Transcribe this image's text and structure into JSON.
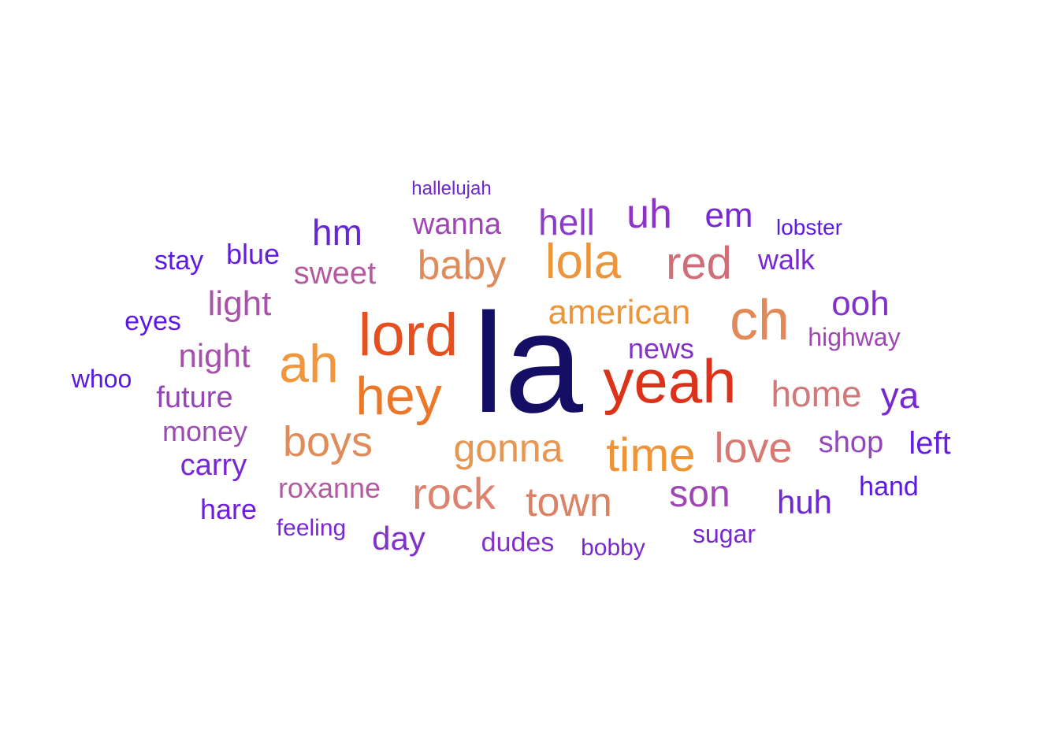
{
  "words": [
    {
      "text": "la",
      "color": "#140f64",
      "weight": 100
    },
    {
      "text": "yeah",
      "color": "#dc3219",
      "weight": 62
    },
    {
      "text": "lord",
      "color": "#e6501e",
      "weight": 60
    },
    {
      "text": "hey",
      "color": "#eb7828",
      "weight": 56
    },
    {
      "text": "ah",
      "color": "#f0963c",
      "weight": 56
    },
    {
      "text": "ch",
      "color": "#e08a5a",
      "weight": 55
    },
    {
      "text": "lola",
      "color": "#eb963c",
      "weight": 46
    },
    {
      "text": "time",
      "color": "#ee9437",
      "weight": 46
    },
    {
      "text": "red",
      "color": "#cd6e78",
      "weight": 44
    },
    {
      "text": "rock",
      "color": "#dc826e",
      "weight": 42
    },
    {
      "text": "boys",
      "color": "#e08c5a",
      "weight": 41
    },
    {
      "text": "love",
      "color": "#d77873",
      "weight": 41
    },
    {
      "text": "baby",
      "color": "#e08c5a",
      "weight": 40
    },
    {
      "text": "town",
      "color": "#dc8264",
      "weight": 40
    },
    {
      "text": "uh",
      "color": "#8c32c8",
      "weight": 40
    },
    {
      "text": "gonna",
      "color": "#e69650",
      "weight": 40
    },
    {
      "text": "son",
      "color": "#a046b4",
      "weight": 38
    },
    {
      "text": "home",
      "color": "#d27878",
      "weight": 37
    },
    {
      "text": "american",
      "color": "#eb963c",
      "weight": 35
    },
    {
      "text": "hell",
      "color": "#8c3cc8",
      "weight": 35
    },
    {
      "text": "ya",
      "color": "#7828d2",
      "weight": 35
    },
    {
      "text": "hm",
      "color": "#6428d2",
      "weight": 35
    },
    {
      "text": "ooh",
      "color": "#8232c8",
      "weight": 34
    },
    {
      "text": "light",
      "color": "#aa50aa",
      "weight": 34
    },
    {
      "text": "em",
      "color": "#7828d2",
      "weight": 33
    },
    {
      "text": "night",
      "color": "#a550aa",
      "weight": 33
    },
    {
      "text": "huh",
      "color": "#6e28d2",
      "weight": 32
    },
    {
      "text": "day",
      "color": "#8232c8",
      "weight": 32
    },
    {
      "text": "sweet",
      "color": "#b45aa0",
      "weight": 31
    },
    {
      "text": "wanna",
      "color": "#a046b4",
      "weight": 30
    },
    {
      "text": "left",
      "color": "#641ee6",
      "weight": 30
    },
    {
      "text": "blue",
      "color": "#641edc",
      "weight": 29
    },
    {
      "text": "future",
      "color": "#9646b4",
      "weight": 29
    },
    {
      "text": "carry",
      "color": "#7828d2",
      "weight": 29
    },
    {
      "text": "hare",
      "color": "#6e1edc",
      "weight": 29
    },
    {
      "text": "walk",
      "color": "#7828d2",
      "weight": 29
    },
    {
      "text": "news",
      "color": "#8232c8",
      "weight": 29
    },
    {
      "text": "shop",
      "color": "#9646be",
      "weight": 29
    },
    {
      "text": "roxanne",
      "color": "#b45aa0",
      "weight": 28
    },
    {
      "text": "money",
      "color": "#9b4bb4",
      "weight": 28
    },
    {
      "text": "highway",
      "color": "#a046b4",
      "weight": 27
    },
    {
      "text": "stay",
      "color": "#5a19e6",
      "weight": 27
    },
    {
      "text": "dudes",
      "color": "#8232c8",
      "weight": 27
    },
    {
      "text": "eyes",
      "color": "#5a19e6",
      "weight": 27
    },
    {
      "text": "hand",
      "color": "#5a19e6",
      "weight": 27
    },
    {
      "text": "whoo",
      "color": "#5a19e6",
      "weight": 26
    },
    {
      "text": "feeling",
      "color": "#7828d2",
      "weight": 25
    },
    {
      "text": "sugar",
      "color": "#7828d2",
      "weight": 25
    },
    {
      "text": "bobby",
      "color": "#7828d2",
      "weight": 25
    },
    {
      "text": "lobster",
      "color": "#5a19e6",
      "weight": 24
    },
    {
      "text": "hallelujah",
      "color": "#6e28d2",
      "weight": 22
    }
  ]
}
